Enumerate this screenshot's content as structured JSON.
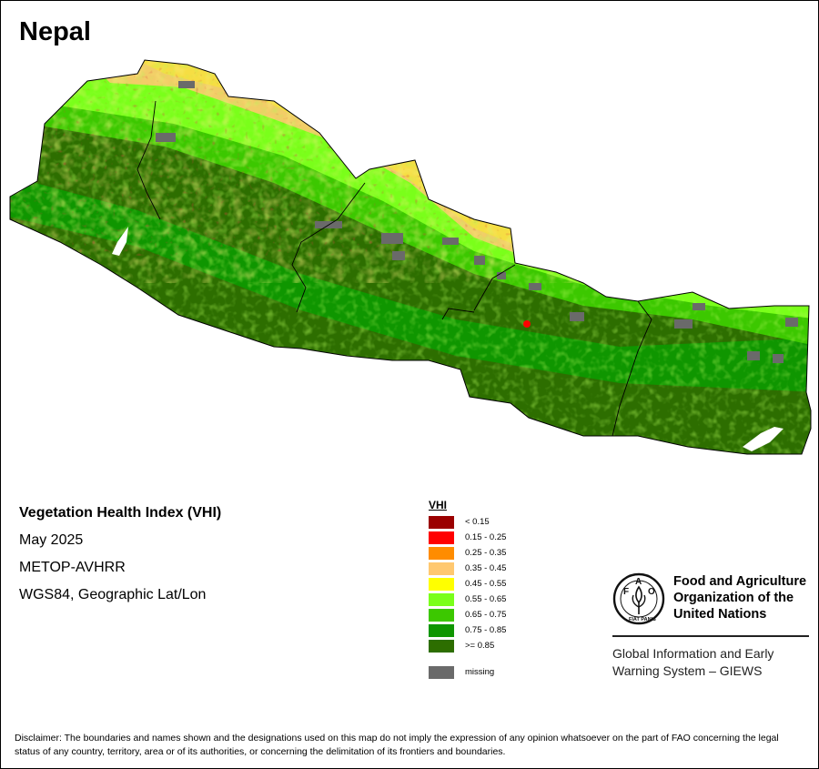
{
  "map": {
    "title": "Nepal",
    "info": {
      "index_title": "Vegetation Health Index (VHI)",
      "period": "May 2025",
      "sensor": "METOP-AVHRR",
      "projection": "WGS84, Geographic Lat/Lon"
    },
    "legend": {
      "title": "VHI",
      "classes": [
        {
          "label": "< 0.15",
          "color": "#9b0000"
        },
        {
          "label": "0.15 - 0.25",
          "color": "#ff0000"
        },
        {
          "label": "0.25 - 0.35",
          "color": "#ff8c00"
        },
        {
          "label": "0.35 - 0.45",
          "color": "#ffc870"
        },
        {
          "label": "0.45 - 0.55",
          "color": "#ffff00"
        },
        {
          "label": "0.55 - 0.65",
          "color": "#7aff1a"
        },
        {
          "label": "0.65 - 0.75",
          "color": "#3cc800"
        },
        {
          "label": "0.75 - 0.85",
          "color": "#0f9600"
        },
        {
          "label": ">= 0.85",
          "color": "#2d6e00"
        }
      ],
      "missing": {
        "label": "missing",
        "color": "#6a6a6a"
      }
    },
    "organization": {
      "logo_text": "FAO",
      "logo_motto": "FIAT PANIS",
      "name_lines": [
        "Food and Agriculture",
        "Organization of the",
        "United Nations"
      ],
      "system_lines": [
        "Global Information and Early",
        "Warning System – GIEWS"
      ]
    },
    "disclaimer": "Disclaimer: The boundaries and names shown and the designations used on this map do not imply the expression of any opinion whatsoever on the part of FAO concerning the legal status of any country, territory, area or of its authorities, or concerning the delimitation of its frontiers and boundaries."
  }
}
